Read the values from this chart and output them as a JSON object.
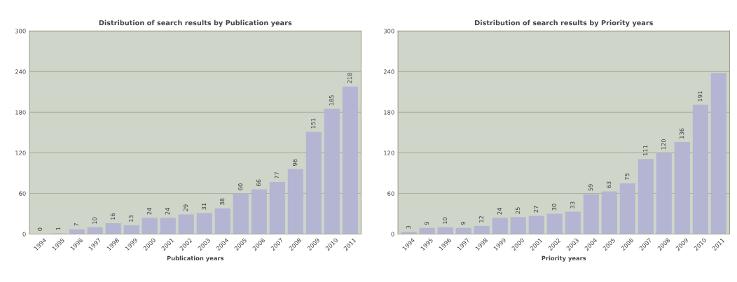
{
  "chart_data": [
    {
      "type": "bar",
      "title": "Distribution of search results by Publication years",
      "xlabel": "Publication years",
      "categories": [
        "1994",
        "1995",
        "1996",
        "1997",
        "1998",
        "1999",
        "2000",
        "2001",
        "2002",
        "2003",
        "2004",
        "2005",
        "2006",
        "2007",
        "2008",
        "2009",
        "2010",
        "2011"
      ],
      "values": [
        0,
        1,
        7,
        10,
        16,
        13,
        24,
        24,
        29,
        31,
        38,
        60,
        66,
        77,
        96,
        151,
        185,
        218
      ],
      "value_labels": [
        "0",
        "1",
        "7",
        "10",
        "16",
        "13",
        "24",
        "24",
        "29",
        "31",
        "38",
        "60",
        "66",
        "77",
        "96",
        "151",
        "185",
        "218"
      ],
      "color": "#b4b5d3",
      "ylim": [
        0,
        300
      ],
      "yticks": [
        0,
        60,
        120,
        180,
        240,
        300
      ],
      "grid": "y"
    },
    {
      "type": "bar",
      "title": "Distribution of search results by Priority years",
      "xlabel": "Priority years",
      "categories": [
        "1994",
        "1995",
        "1996",
        "1997",
        "1998",
        "1999",
        "2000",
        "2001",
        "2002",
        "2003",
        "2004",
        "2005",
        "2006",
        "2007",
        "2008",
        "2009",
        "2010",
        "2011"
      ],
      "values": [
        3,
        9,
        10,
        9,
        12,
        24,
        25,
        27,
        30,
        33,
        59,
        63,
        75,
        111,
        120,
        136,
        191,
        238
      ],
      "value_labels": [
        "3",
        "9",
        "10",
        "9",
        "12",
        "24",
        "25",
        "27",
        "30",
        "33",
        "59",
        "63",
        "75",
        "111",
        "120",
        "136",
        "191",
        null
      ],
      "color": "#b4b5d3",
      "ylim": [
        0,
        300
      ],
      "yticks": [
        0,
        60,
        120,
        180,
        240,
        300
      ],
      "grid": "y"
    }
  ]
}
